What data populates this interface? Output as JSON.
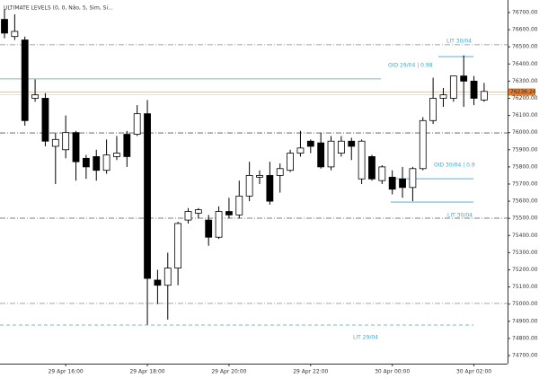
{
  "chart_data": {
    "type": "candlestick",
    "title": "ULTIMATE LEVELS (0, 0, Não, 5, Sim, Si...",
    "categories": [
      null,
      null,
      null,
      null,
      null,
      null,
      "29 Apr 16:00",
      null,
      null,
      null,
      null,
      null,
      null,
      null,
      "29 Apr 18:00",
      null,
      null,
      null,
      null,
      null,
      null,
      null,
      "29 Apr 20:00",
      null,
      null,
      null,
      null,
      null,
      null,
      null,
      "29 Apr 22:00",
      null,
      null,
      null,
      null,
      null,
      null,
      null,
      "30 Apr 00:00",
      null,
      null,
      null,
      null,
      null,
      null,
      null,
      "30 Apr 02:00",
      null
    ],
    "open": [
      76660,
      76560,
      76540,
      76200,
      76200,
      75920,
      75900,
      76000,
      75850,
      75860,
      75780,
      75860,
      75990,
      75990,
      76110,
      75140,
      75110,
      75210,
      75490,
      75530,
      75490,
      75390,
      75540,
      75520,
      75630,
      75740,
      75750,
      75750,
      75780,
      75880,
      75950,
      75940,
      75800,
      75880,
      75950,
      75730,
      75860,
      75720,
      75740,
      75730,
      75680,
      75790,
      76070,
      76200,
      76200,
      76330,
      76300,
      76190
    ],
    "high": [
      76720,
      76690,
      76560,
      76310,
      76230,
      76000,
      76100,
      76010,
      75870,
      75900,
      75960,
      75980,
      76010,
      76160,
      76190,
      75200,
      75300,
      75480,
      75560,
      75560,
      75520,
      75570,
      75620,
      75720,
      75830,
      75780,
      75830,
      75820,
      75900,
      76010,
      75960,
      76000,
      75980,
      75980,
      75970,
      75960,
      75870,
      75810,
      75780,
      75800,
      75800,
      76090,
      76320,
      76260,
      76330,
      76450,
      76330,
      76290
    ],
    "low": [
      76550,
      76540,
      76040,
      76180,
      75920,
      75700,
      75850,
      75720,
      75730,
      75720,
      75760,
      75840,
      75800,
      75980,
      74880,
      75000,
      74910,
      75110,
      75470,
      75500,
      75340,
      75380,
      75500,
      75500,
      75600,
      75700,
      75580,
      75650,
      75770,
      75860,
      75880,
      75790,
      75780,
      75860,
      75840,
      75700,
      75720,
      75700,
      75640,
      75620,
      75600,
      75780,
      76050,
      76150,
      76180,
      76150,
      76160,
      76180
    ],
    "close": [
      76580,
      76590,
      76070,
      76220,
      75950,
      75960,
      76000,
      75830,
      75800,
      75780,
      75870,
      75880,
      75860,
      76110,
      75150,
      75110,
      75210,
      75470,
      75540,
      75550,
      75390,
      75540,
      75520,
      75630,
      75750,
      75750,
      75600,
      75790,
      75880,
      75910,
      75920,
      75800,
      75950,
      75950,
      75920,
      75950,
      75730,
      75800,
      75670,
      75680,
      75790,
      76070,
      76200,
      76220,
      76330,
      76300,
      76200,
      76240
    ],
    "ylim": [
      74653,
      76773
    ],
    "yticks": [
      {
        "value": 76700,
        "label": "76700.00"
      },
      {
        "value": 76600,
        "label": "76600.00"
      },
      {
        "value": 76500,
        "label": "76500.00"
      },
      {
        "value": 76400,
        "label": "76400.00"
      },
      {
        "value": 76300,
        "label": "76300.00"
      },
      {
        "value": 76200,
        "label": "76200.00"
      },
      {
        "value": 76100,
        "label": "76100.00"
      },
      {
        "value": 76000,
        "label": "76000.00"
      },
      {
        "value": 75900,
        "label": "75900.00"
      },
      {
        "value": 75800,
        "label": "75800.00"
      },
      {
        "value": 75700,
        "label": "75700.00"
      },
      {
        "value": 75600,
        "label": "75600.00"
      },
      {
        "value": 75500,
        "label": "75500.00"
      },
      {
        "value": 75400,
        "label": "75400.00"
      },
      {
        "value": 75300,
        "label": "75300.00"
      },
      {
        "value": 75200,
        "label": "75200.00"
      },
      {
        "value": 75100,
        "label": "75100.00"
      },
      {
        "value": 75000,
        "label": "75000.00"
      },
      {
        "value": 74900,
        "label": "74900.00"
      },
      {
        "value": 74800,
        "label": "74800.00"
      },
      {
        "value": 74700,
        "label": "74700.00"
      }
    ],
    "current_price": 76236.24,
    "levels": [
      {
        "label": "LIT 30/04",
        "value": 76512,
        "color": "#888888",
        "style": "dashdot"
      },
      {
        "label": "OID 29/04 | 0.98",
        "value": 76443,
        "color": "#3fa6d0",
        "style": "solid"
      },
      {
        "value": 76313,
        "color": "#3fa6d0",
        "style": "solid"
      },
      {
        "value": 75998,
        "color": "#555555",
        "style": "dashdot"
      },
      {
        "label": "OID 30/04 | 0.9",
        "value": 75731,
        "color": "#3fa6d0",
        "style": "solid"
      },
      {
        "value": 75595,
        "color": "#3fa6d0",
        "style": "solid"
      },
      {
        "label": "LIT 30/04",
        "value": 75501,
        "color": "#555555",
        "style": "dashdot"
      },
      {
        "value": 75004,
        "color": "#999999",
        "style": "dashdot"
      },
      {
        "label": "LIT 29/04",
        "value": 74878,
        "color": "#3fa6d0",
        "style": "dashed"
      }
    ]
  }
}
